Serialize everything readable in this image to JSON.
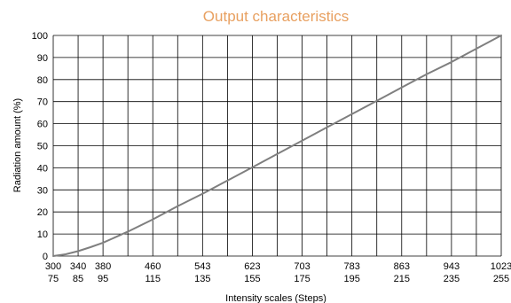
{
  "chart_data": {
    "type": "line",
    "title": "Output characteristics",
    "xlabel": "Intensity scales (Steps)",
    "ylabel": "Radiation amount (%)",
    "x_ticks_top": [
      "300",
      "340",
      "380",
      "",
      "460",
      "",
      "543",
      "",
      "623",
      "",
      "703",
      "",
      "783",
      "",
      "863",
      "",
      "943",
      "",
      "1023"
    ],
    "x_ticks_bottom": [
      "75",
      "85",
      "95",
      "",
      "115",
      "",
      "135",
      "",
      "155",
      "",
      "175",
      "",
      "195",
      "",
      "215",
      "",
      "235",
      "",
      "255"
    ],
    "y_ticks": [
      "0",
      "10",
      "20",
      "30",
      "40",
      "50",
      "60",
      "70",
      "80",
      "90",
      "100"
    ],
    "xlim": [
      300,
      1023
    ],
    "ylim": [
      0,
      100
    ],
    "grid": true,
    "series": [
      {
        "x": [
          300,
          320,
          340,
          360,
          380,
          420,
          460,
          500,
          543,
          583,
          623,
          663,
          703,
          743,
          783,
          823,
          863,
          903,
          943,
          983,
          1023
        ],
        "y": [
          0,
          0.8,
          2.2,
          4,
          6,
          11,
          16.5,
          22.5,
          28.5,
          34.5,
          40.5,
          46.5,
          52.5,
          58.5,
          64.5,
          70.5,
          76.5,
          82.5,
          88,
          94,
          100
        ]
      }
    ],
    "colors": {
      "title": "#e8a060",
      "line": "#7f7f7f",
      "grid": "#000000"
    }
  }
}
